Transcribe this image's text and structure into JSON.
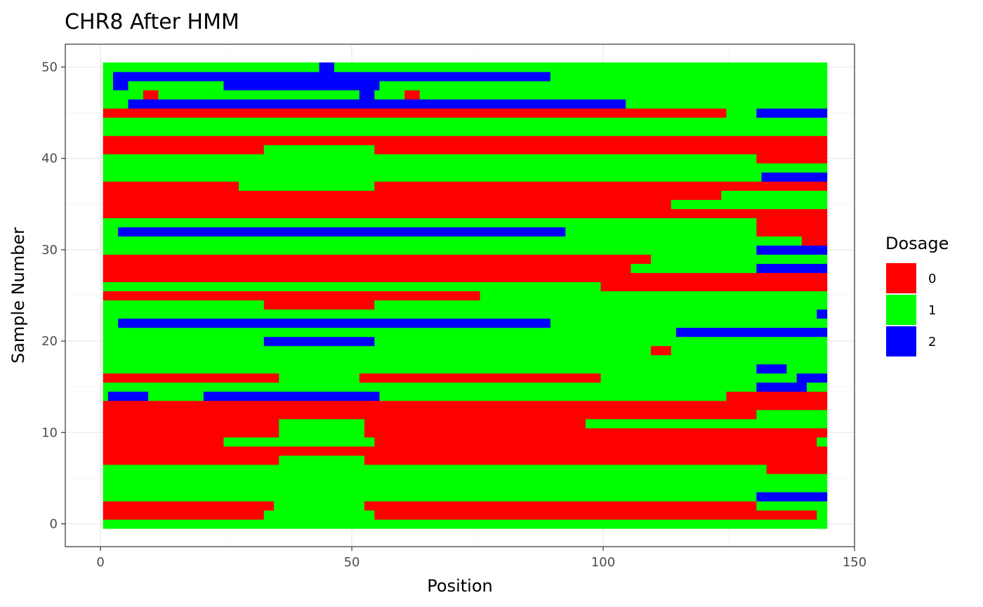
{
  "chart_data": {
    "type": "heatmap",
    "title": "CHR8 After HMM",
    "xlabel": "Position",
    "ylabel": "Sample Number",
    "xlim": [
      -7,
      150
    ],
    "ylim": [
      -2.5,
      52.5
    ],
    "x_ticks": [
      0,
      50,
      100,
      150
    ],
    "y_ticks": [
      0,
      10,
      20,
      30,
      40,
      50
    ],
    "x_tick_labels": [
      "0",
      "50",
      "100",
      "150"
    ],
    "y_tick_labels": [
      "0",
      "10",
      "20",
      "30",
      "40",
      "50"
    ],
    "grid": true,
    "legend": {
      "title": "Dosage",
      "placement": "right",
      "entries": [
        {
          "label": "0",
          "value": 0,
          "color": "#ff0000"
        },
        {
          "label": "1",
          "value": 1,
          "color": "#00ff00"
        },
        {
          "label": "2",
          "value": 2,
          "color": "#0000ff"
        }
      ]
    },
    "colors": {
      "0": "#ff0000",
      "1": "#00ff00",
      "2": "#0000ff"
    },
    "x_range": [
      0.5,
      144.5
    ],
    "rows_note": "each row lists segments [x_start, x_end, dosage]; row index = sample number",
    "rows": [
      [
        [
          0.5,
          144.5,
          1
        ]
      ],
      [
        [
          0.5,
          32.5,
          0
        ],
        [
          32.5,
          54.5,
          1
        ],
        [
          54.5,
          142.5,
          0
        ],
        [
          142.5,
          144.5,
          1
        ]
      ],
      [
        [
          0.5,
          34.5,
          0
        ],
        [
          34.5,
          52.5,
          1
        ],
        [
          52.5,
          130.5,
          0
        ],
        [
          130.5,
          144.5,
          1
        ]
      ],
      [
        [
          0.5,
          130.5,
          1
        ],
        [
          130.5,
          144.5,
          2
        ]
      ],
      [
        [
          0.5,
          144.5,
          1
        ]
      ],
      [
        [
          0.5,
          144.5,
          1
        ]
      ],
      [
        [
          0.5,
          132.5,
          1
        ],
        [
          132.5,
          144.5,
          0
        ]
      ],
      [
        [
          0.5,
          35.5,
          0
        ],
        [
          35.5,
          52.5,
          1
        ],
        [
          52.5,
          144.5,
          0
        ]
      ],
      [
        [
          0.5,
          144.5,
          0
        ]
      ],
      [
        [
          0.5,
          24.5,
          0
        ],
        [
          24.5,
          54.5,
          1
        ],
        [
          54.5,
          142.5,
          0
        ],
        [
          142.5,
          144.5,
          1
        ]
      ],
      [
        [
          0.5,
          35.5,
          0
        ],
        [
          35.5,
          52.5,
          1
        ],
        [
          52.5,
          144.5,
          0
        ]
      ],
      [
        [
          0.5,
          35.5,
          0
        ],
        [
          35.5,
          52.5,
          1
        ],
        [
          52.5,
          96.5,
          0
        ],
        [
          96.5,
          144.5,
          1
        ]
      ],
      [
        [
          0.5,
          130.5,
          0
        ],
        [
          130.5,
          144.5,
          1
        ]
      ],
      [
        [
          0.5,
          124.5,
          0
        ],
        [
          124.5,
          144.5,
          0
        ]
      ],
      [
        [
          0.5,
          1.5,
          1
        ],
        [
          1.5,
          9.5,
          2
        ],
        [
          9.5,
          20.5,
          1
        ],
        [
          20.5,
          55.5,
          2
        ],
        [
          55.5,
          124.5,
          1
        ],
        [
          124.5,
          144.5,
          0
        ]
      ],
      [
        [
          0.5,
          130.5,
          1
        ],
        [
          130.5,
          140.5,
          2
        ],
        [
          140.5,
          144.5,
          1
        ]
      ],
      [
        [
          0.5,
          35.5,
          0
        ],
        [
          35.5,
          51.5,
          1
        ],
        [
          51.5,
          99.5,
          0
        ],
        [
          99.5,
          138.5,
          1
        ],
        [
          138.5,
          144.5,
          2
        ]
      ],
      [
        [
          0.5,
          130.5,
          1
        ],
        [
          130.5,
          136.5,
          2
        ],
        [
          136.5,
          144.5,
          1
        ]
      ],
      [
        [
          0.5,
          144.5,
          1
        ]
      ],
      [
        [
          0.5,
          109.5,
          1
        ],
        [
          109.5,
          113.5,
          0
        ],
        [
          113.5,
          144.5,
          1
        ]
      ],
      [
        [
          0.5,
          32.5,
          1
        ],
        [
          32.5,
          54.5,
          2
        ],
        [
          54.5,
          144.5,
          1
        ]
      ],
      [
        [
          0.5,
          114.5,
          1
        ],
        [
          114.5,
          144.5,
          2
        ]
      ],
      [
        [
          0.5,
          3.5,
          1
        ],
        [
          3.5,
          89.5,
          2
        ],
        [
          89.5,
          144.5,
          1
        ]
      ],
      [
        [
          0.5,
          142.5,
          1
        ],
        [
          142.5,
          144.5,
          2
        ]
      ],
      [
        [
          0.5,
          32.5,
          1
        ],
        [
          32.5,
          54.5,
          0
        ],
        [
          54.5,
          144.5,
          1
        ]
      ],
      [
        [
          0.5,
          75.5,
          0
        ],
        [
          75.5,
          144.5,
          1
        ]
      ],
      [
        [
          0.5,
          99.5,
          1
        ],
        [
          99.5,
          144.5,
          0
        ]
      ],
      [
        [
          0.5,
          105.5,
          0
        ],
        [
          105.5,
          144.5,
          0
        ]
      ],
      [
        [
          0.5,
          105.5,
          0
        ],
        [
          105.5,
          130.5,
          1
        ],
        [
          130.5,
          144.5,
          2
        ]
      ],
      [
        [
          0.5,
          109.5,
          0
        ],
        [
          109.5,
          144.5,
          1
        ]
      ],
      [
        [
          0.5,
          130.5,
          1
        ],
        [
          130.5,
          144.5,
          2
        ]
      ],
      [
        [
          0.5,
          130.5,
          1
        ],
        [
          130.5,
          139.5,
          1
        ],
        [
          139.5,
          144.5,
          0
        ]
      ],
      [
        [
          0.5,
          3.5,
          1
        ],
        [
          3.5,
          92.5,
          2
        ],
        [
          92.5,
          130.5,
          1
        ],
        [
          130.5,
          144.5,
          0
        ]
      ],
      [
        [
          0.5,
          130.5,
          1
        ],
        [
          130.5,
          144.5,
          0
        ]
      ],
      [
        [
          0.5,
          144.5,
          0
        ]
      ],
      [
        [
          0.5,
          113.5,
          0
        ],
        [
          113.5,
          144.5,
          1
        ]
      ],
      [
        [
          0.5,
          123.5,
          0
        ],
        [
          123.5,
          144.5,
          1
        ]
      ],
      [
        [
          0.5,
          27.5,
          0
        ],
        [
          27.5,
          54.5,
          1
        ],
        [
          54.5,
          144.5,
          0
        ]
      ],
      [
        [
          0.5,
          131.5,
          1
        ],
        [
          131.5,
          144.5,
          2
        ]
      ],
      [
        [
          0.5,
          131.5,
          1
        ],
        [
          131.5,
          144.5,
          1
        ]
      ],
      [
        [
          0.5,
          130.5,
          1
        ],
        [
          130.5,
          144.5,
          0
        ]
      ],
      [
        [
          0.5,
          32.5,
          0
        ],
        [
          32.5,
          54.5,
          1
        ],
        [
          54.5,
          144.5,
          0
        ]
      ],
      [
        [
          0.5,
          144.5,
          0
        ]
      ],
      [
        [
          0.5,
          144.5,
          1
        ]
      ],
      [
        [
          0.5,
          144.5,
          1
        ]
      ],
      [
        [
          0.5,
          124.5,
          0
        ],
        [
          124.5,
          130.5,
          1
        ],
        [
          130.5,
          144.5,
          2
        ]
      ],
      [
        [
          0.5,
          5.5,
          1
        ],
        [
          5.5,
          104.5,
          2
        ],
        [
          104.5,
          144.5,
          1
        ]
      ],
      [
        [
          0.5,
          8.5,
          1
        ],
        [
          8.5,
          11.5,
          0
        ],
        [
          11.5,
          51.5,
          1
        ],
        [
          51.5,
          54.5,
          2
        ],
        [
          54.5,
          60.5,
          1
        ],
        [
          60.5,
          63.5,
          0
        ],
        [
          63.5,
          144.5,
          1
        ]
      ],
      [
        [
          0.5,
          2.5,
          1
        ],
        [
          2.5,
          5.5,
          2
        ],
        [
          5.5,
          24.5,
          1
        ],
        [
          24.5,
          55.5,
          2
        ],
        [
          55.5,
          144.5,
          1
        ]
      ],
      [
        [
          0.5,
          2.5,
          1
        ],
        [
          2.5,
          89.5,
          2
        ],
        [
          89.5,
          144.5,
          1
        ]
      ],
      [
        [
          0.5,
          43.5,
          1
        ],
        [
          43.5,
          46.5,
          2
        ],
        [
          46.5,
          144.5,
          1
        ]
      ]
    ]
  }
}
